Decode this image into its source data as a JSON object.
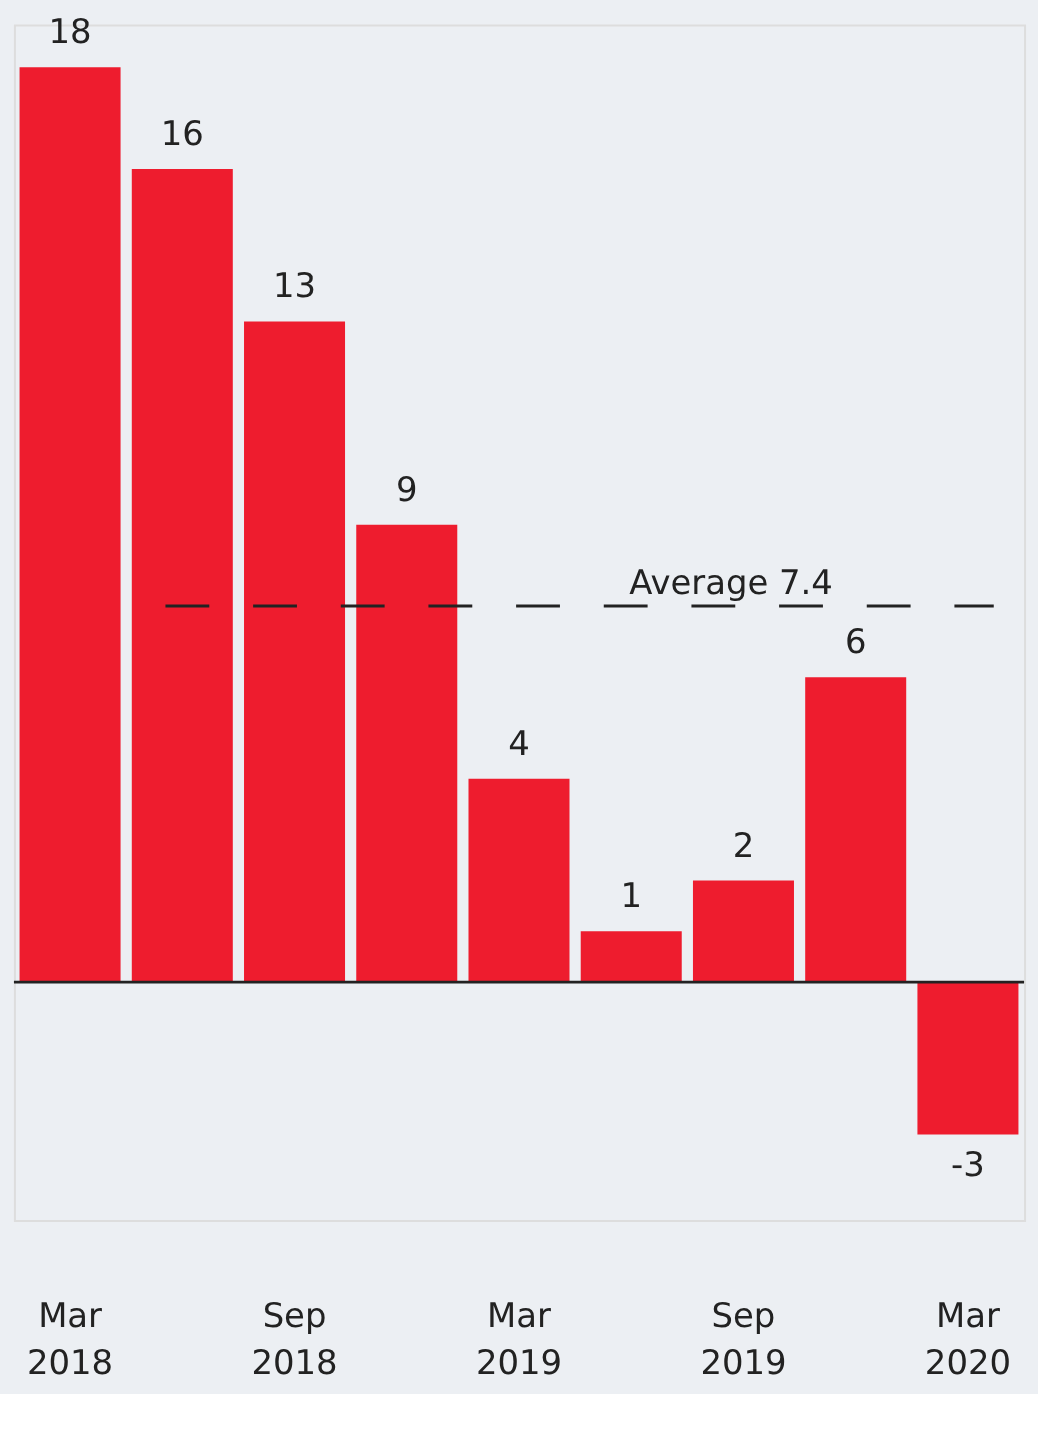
{
  "chart_data": {
    "type": "bar",
    "categories": [
      "Mar 2018",
      null,
      "Sep 2018",
      null,
      "Mar 2019",
      null,
      "Sep 2019",
      null,
      "Mar 2020"
    ],
    "values": [
      18,
      16,
      13,
      9,
      4,
      1,
      2,
      6,
      -3
    ],
    "color": "#ee1c2e",
    "data_labels": true,
    "ref_lines": [
      {
        "axis": "y",
        "value": 7.4,
        "label": "Average 7.4",
        "color": "#222222",
        "line_style": "dashed"
      }
    ]
  }
}
